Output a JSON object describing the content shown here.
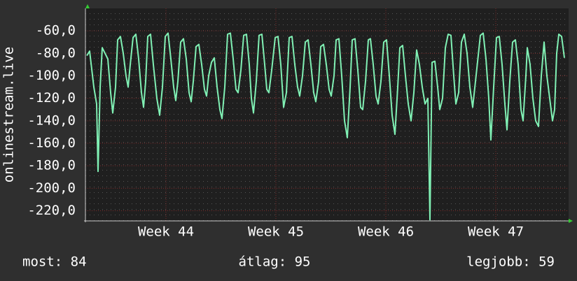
{
  "chart_data": {
    "type": "line",
    "ylabel": "onlinestream.live",
    "xlim": [
      0,
      690
    ],
    "xticks": [
      {
        "value": 115,
        "label": "Week 44"
      },
      {
        "value": 272,
        "label": "Week 45"
      },
      {
        "value": 429,
        "label": "Week 46"
      },
      {
        "value": 586,
        "label": "Week 47"
      }
    ],
    "ylim": [
      -229,
      -40
    ],
    "yticks": [
      {
        "value": -60,
        "label": "-60,0"
      },
      {
        "value": -80,
        "label": "-80,0"
      },
      {
        "value": -100,
        "label": "-100,0"
      },
      {
        "value": -120,
        "label": "-120,0"
      },
      {
        "value": -140,
        "label": "-140,0"
      },
      {
        "value": -160,
        "label": "-160,0"
      },
      {
        "value": -180,
        "label": "-180,0"
      },
      {
        "value": -200,
        "label": "-200,0"
      },
      {
        "value": -220,
        "label": "-220,0"
      }
    ],
    "grid": true,
    "x": [
      2,
      6,
      12,
      16,
      18,
      21,
      24,
      28,
      32,
      36,
      39,
      43,
      46,
      50,
      54,
      58,
      61,
      64,
      68,
      72,
      76,
      80,
      83,
      86,
      89,
      93,
      97,
      102,
      106,
      110,
      114,
      118,
      122,
      126,
      129,
      132,
      136,
      140,
      144,
      148,
      151,
      154,
      158,
      162,
      166,
      170,
      173,
      176,
      180,
      184,
      188,
      192,
      195,
      199,
      203,
      207,
      211,
      215,
      218,
      222,
      226,
      230,
      234,
      237,
      240,
      244,
      248,
      252,
      256,
      259,
      262,
      266,
      271,
      275,
      279,
      283,
      287,
      291,
      295,
      299,
      303,
      306,
      310,
      314,
      318,
      322,
      326,
      329,
      333,
      336,
      340,
      344,
      348,
      351,
      355,
      358,
      362,
      366,
      370,
      374,
      378,
      381,
      385,
      389,
      393,
      396,
      400,
      404,
      407,
      411,
      415,
      418,
      422,
      426,
      430,
      434,
      438,
      442,
      446,
      449,
      453,
      457,
      461,
      465,
      469,
      473,
      477,
      481,
      485,
      489,
      492,
      495,
      499,
      503,
      506,
      510,
      514,
      518,
      522,
      526,
      529,
      533,
      537,
      541,
      545,
      549,
      553,
      557,
      564,
      568,
      572,
      576,
      579,
      583,
      587,
      591,
      595,
      599,
      602,
      606,
      610,
      614,
      618,
      622,
      625,
      629,
      631,
      635,
      639,
      643,
      647,
      651,
      655,
      659,
      663,
      667,
      670,
      673,
      676,
      680,
      684
    ],
    "series": [
      {
        "color": "#80f0b4",
        "values": [
          -82,
          -78,
          -110,
          -125,
          -185,
          -110,
          -75,
          -80,
          -85,
          -115,
          -133,
          -110,
          -68,
          -65,
          -80,
          -100,
          -110,
          -90,
          -66,
          -63,
          -85,
          -115,
          -128,
          -105,
          -65,
          -63,
          -90,
          -120,
          -135,
          -110,
          -65,
          -62,
          -85,
          -110,
          -122,
          -105,
          -70,
          -67,
          -85,
          -115,
          -123,
          -105,
          -74,
          -72,
          -90,
          -112,
          -118,
          -100,
          -88,
          -84,
          -110,
          -130,
          -138,
          -110,
          -63,
          -62,
          -85,
          -112,
          -115,
          -95,
          -64,
          -63,
          -90,
          -120,
          -133,
          -105,
          -64,
          -63,
          -90,
          -112,
          -115,
          -95,
          -66,
          -65,
          -90,
          -128,
          -115,
          -66,
          -65,
          -90,
          -110,
          -118,
          -100,
          -70,
          -68,
          -90,
          -115,
          -123,
          -105,
          -74,
          -72,
          -90,
          -112,
          -118,
          -100,
          -68,
          -67,
          -100,
          -140,
          -155,
          -110,
          -68,
          -67,
          -95,
          -128,
          -130,
          -105,
          -68,
          -67,
          -90,
          -118,
          -125,
          -105,
          -70,
          -68,
          -100,
          -135,
          -152,
          -110,
          -75,
          -73,
          -100,
          -125,
          -140,
          -115,
          -77,
          -90,
          -110,
          -125,
          -120,
          -228,
          -88,
          -87,
          -110,
          -130,
          -120,
          -75,
          -63,
          -64,
          -100,
          -125,
          -115,
          -70,
          -63,
          -80,
          -110,
          -128,
          -105,
          -64,
          -62,
          -85,
          -120,
          -157,
          -110,
          -66,
          -65,
          -90,
          -125,
          -148,
          -105,
          -70,
          -68,
          -90,
          -130,
          -140,
          -100,
          -75,
          -90,
          -120,
          -140,
          -145,
          -100,
          -70,
          -100,
          -120,
          -140,
          -130,
          -80,
          -63,
          -65,
          -84
        ]
      }
    ],
    "footer": [
      "most: 84",
      "átlag: 95",
      "legjobb: 59"
    ]
  }
}
